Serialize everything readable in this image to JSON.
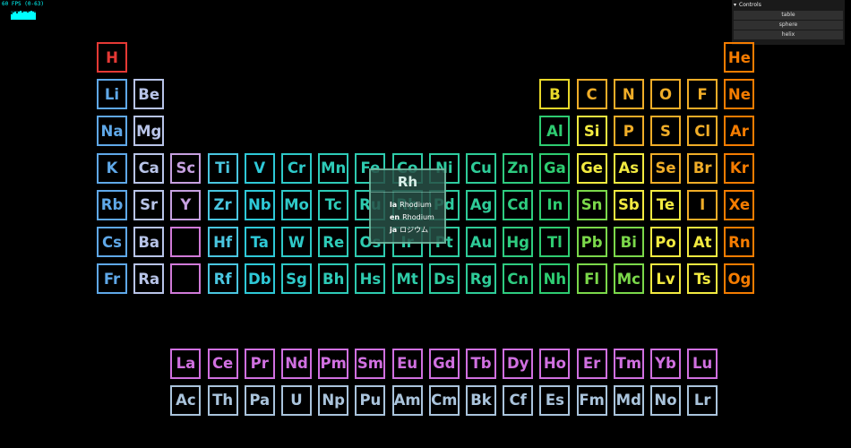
{
  "stats": {
    "fps_text": "60 FPS (0-63)",
    "bars": [
      0.6,
      0.8,
      0.9,
      0.7,
      0.9,
      1,
      0.8,
      0.9,
      0.9,
      0.8,
      0.9,
      1,
      0.9,
      0.8
    ]
  },
  "controls": {
    "title": "Controls",
    "buttons": [
      "table",
      "sphere",
      "helix"
    ]
  },
  "tooltip": {
    "symbol": "Rh",
    "names": [
      {
        "lang": "la",
        "name": "Rhodium"
      },
      {
        "lang": "en",
        "name": "Rhodium"
      },
      {
        "lang": "ja",
        "name": "ロジウム"
      }
    ]
  },
  "elements": [
    {
      "s": "H",
      "c": "#e53935",
      "r": 0,
      "col": 0
    },
    {
      "s": "He",
      "c": "#f57c00",
      "r": 0,
      "col": 17
    },
    {
      "s": "Li",
      "c": "#5fa8e8",
      "r": 1,
      "col": 0
    },
    {
      "s": "Be",
      "c": "#b8c4e8",
      "r": 1,
      "col": 1
    },
    {
      "s": "B",
      "c": "#e8d82a",
      "r": 1,
      "col": 12
    },
    {
      "s": "C",
      "c": "#f0ad28",
      "r": 1,
      "col": 13
    },
    {
      "s": "N",
      "c": "#f0ad28",
      "r": 1,
      "col": 14
    },
    {
      "s": "O",
      "c": "#f0ad28",
      "r": 1,
      "col": 15
    },
    {
      "s": "F",
      "c": "#f0ad28",
      "r": 1,
      "col": 16
    },
    {
      "s": "Ne",
      "c": "#f57c00",
      "r": 1,
      "col": 17
    },
    {
      "s": "Na",
      "c": "#5fa8e8",
      "r": 2,
      "col": 0
    },
    {
      "s": "Mg",
      "c": "#b8c4e8",
      "r": 2,
      "col": 1
    },
    {
      "s": "Al",
      "c": "#2ecc71",
      "r": 2,
      "col": 12
    },
    {
      "s": "Si",
      "c": "#f2ea40",
      "r": 2,
      "col": 13
    },
    {
      "s": "P",
      "c": "#f0ad28",
      "r": 2,
      "col": 14
    },
    {
      "s": "S",
      "c": "#f0ad28",
      "r": 2,
      "col": 15
    },
    {
      "s": "Cl",
      "c": "#f0ad28",
      "r": 2,
      "col": 16
    },
    {
      "s": "Ar",
      "c": "#f57c00",
      "r": 2,
      "col": 17
    },
    {
      "s": "K",
      "c": "#5fa8e8",
      "r": 3,
      "col": 0
    },
    {
      "s": "Ca",
      "c": "#b8c4e8",
      "r": 3,
      "col": 1
    },
    {
      "s": "Sc",
      "c": "#c6a0e0",
      "r": 3,
      "col": 2
    },
    {
      "s": "Ti",
      "c": "#4ac6e0",
      "r": 3,
      "col": 3
    },
    {
      "s": "V",
      "c": "#2ec9d8",
      "r": 3,
      "col": 4
    },
    {
      "s": "Cr",
      "c": "#2ec9c8",
      "r": 3,
      "col": 5
    },
    {
      "s": "Mn",
      "c": "#2ecbb8",
      "r": 3,
      "col": 6
    },
    {
      "s": "Fe",
      "c": "#2ecbb0",
      "r": 3,
      "col": 7
    },
    {
      "s": "Co",
      "c": "#2ecca8",
      "r": 3,
      "col": 8
    },
    {
      "s": "Ni",
      "c": "#2ecca0",
      "r": 3,
      "col": 9
    },
    {
      "s": "Cu",
      "c": "#2ecc98",
      "r": 3,
      "col": 10
    },
    {
      "s": "Zn",
      "c": "#2ecc80",
      "r": 3,
      "col": 11
    },
    {
      "s": "Ga",
      "c": "#2ecc71",
      "r": 3,
      "col": 12
    },
    {
      "s": "Ge",
      "c": "#f2ea40",
      "r": 3,
      "col": 13
    },
    {
      "s": "As",
      "c": "#f2ea40",
      "r": 3,
      "col": 14
    },
    {
      "s": "Se",
      "c": "#f0ad28",
      "r": 3,
      "col": 15
    },
    {
      "s": "Br",
      "c": "#f0ad28",
      "r": 3,
      "col": 16
    },
    {
      "s": "Kr",
      "c": "#f57c00",
      "r": 3,
      "col": 17
    },
    {
      "s": "Rb",
      "c": "#5fa8e8",
      "r": 4,
      "col": 0
    },
    {
      "s": "Sr",
      "c": "#b8c4e8",
      "r": 4,
      "col": 1
    },
    {
      "s": "Y",
      "c": "#c6a0e0",
      "r": 4,
      "col": 2
    },
    {
      "s": "Zr",
      "c": "#4ac6e0",
      "r": 4,
      "col": 3
    },
    {
      "s": "Nb",
      "c": "#2ec9d8",
      "r": 4,
      "col": 4
    },
    {
      "s": "Mo",
      "c": "#2ec9c8",
      "r": 4,
      "col": 5
    },
    {
      "s": "Tc",
      "c": "#2ecbb8",
      "r": 4,
      "col": 6
    },
    {
      "s": "Ru",
      "c": "#2ecbb0",
      "r": 4,
      "col": 7
    },
    {
      "s": "Rh",
      "c": "#2ecca8",
      "r": 4,
      "col": 8
    },
    {
      "s": "Pd",
      "c": "#2ecca0",
      "r": 4,
      "col": 9
    },
    {
      "s": "Ag",
      "c": "#2ecc98",
      "r": 4,
      "col": 10
    },
    {
      "s": "Cd",
      "c": "#2ecc80",
      "r": 4,
      "col": 11
    },
    {
      "s": "In",
      "c": "#2ecc71",
      "r": 4,
      "col": 12
    },
    {
      "s": "Sn",
      "c": "#7bd84a",
      "r": 4,
      "col": 13
    },
    {
      "s": "Sb",
      "c": "#f2ea40",
      "r": 4,
      "col": 14
    },
    {
      "s": "Te",
      "c": "#f2ea40",
      "r": 4,
      "col": 15
    },
    {
      "s": "I",
      "c": "#f0ad28",
      "r": 4,
      "col": 16
    },
    {
      "s": "Xe",
      "c": "#f57c00",
      "r": 4,
      "col": 17
    },
    {
      "s": "Cs",
      "c": "#5fa8e8",
      "r": 5,
      "col": 0
    },
    {
      "s": "Ba",
      "c": "#b8c4e8",
      "r": 5,
      "col": 1
    },
    {
      "s": "Hf",
      "c": "#4ac6e0",
      "r": 5,
      "col": 3
    },
    {
      "s": "Ta",
      "c": "#2ec9d8",
      "r": 5,
      "col": 4
    },
    {
      "s": "W",
      "c": "#2ec9c8",
      "r": 5,
      "col": 5
    },
    {
      "s": "Re",
      "c": "#2ecbb8",
      "r": 5,
      "col": 6
    },
    {
      "s": "Os",
      "c": "#2ecbb0",
      "r": 5,
      "col": 7
    },
    {
      "s": "Ir",
      "c": "#2ecca8",
      "r": 5,
      "col": 8
    },
    {
      "s": "Pt",
      "c": "#2ecca0",
      "r": 5,
      "col": 9
    },
    {
      "s": "Au",
      "c": "#2ecc98",
      "r": 5,
      "col": 10
    },
    {
      "s": "Hg",
      "c": "#2ecc80",
      "r": 5,
      "col": 11
    },
    {
      "s": "Tl",
      "c": "#2ecc71",
      "r": 5,
      "col": 12
    },
    {
      "s": "Pb",
      "c": "#7bd84a",
      "r": 5,
      "col": 13
    },
    {
      "s": "Bi",
      "c": "#7bd84a",
      "r": 5,
      "col": 14
    },
    {
      "s": "Po",
      "c": "#f2ea40",
      "r": 5,
      "col": 15
    },
    {
      "s": "At",
      "c": "#f2ea40",
      "r": 5,
      "col": 16
    },
    {
      "s": "Rn",
      "c": "#f57c00",
      "r": 5,
      "col": 17
    },
    {
      "s": "Fr",
      "c": "#5fa8e8",
      "r": 6,
      "col": 0
    },
    {
      "s": "Ra",
      "c": "#b8c4e8",
      "r": 6,
      "col": 1
    },
    {
      "s": "Rf",
      "c": "#4ac6e0",
      "r": 6,
      "col": 3
    },
    {
      "s": "Db",
      "c": "#2ec9d8",
      "r": 6,
      "col": 4
    },
    {
      "s": "Sg",
      "c": "#2ec9c8",
      "r": 6,
      "col": 5
    },
    {
      "s": "Bh",
      "c": "#2ecbb8",
      "r": 6,
      "col": 6
    },
    {
      "s": "Hs",
      "c": "#2ecbb0",
      "r": 6,
      "col": 7
    },
    {
      "s": "Mt",
      "c": "#2ecca8",
      "r": 6,
      "col": 8
    },
    {
      "s": "Ds",
      "c": "#2ecca0",
      "r": 6,
      "col": 9
    },
    {
      "s": "Rg",
      "c": "#2ecc98",
      "r": 6,
      "col": 10
    },
    {
      "s": "Cn",
      "c": "#2ecc80",
      "r": 6,
      "col": 11
    },
    {
      "s": "Nh",
      "c": "#2ecc71",
      "r": 6,
      "col": 12
    },
    {
      "s": "Fl",
      "c": "#7bd84a",
      "r": 6,
      "col": 13
    },
    {
      "s": "Mc",
      "c": "#7bd84a",
      "r": 6,
      "col": 14
    },
    {
      "s": "Lv",
      "c": "#f2ea40",
      "r": 6,
      "col": 15
    },
    {
      "s": "Ts",
      "c": "#f2ea40",
      "r": 6,
      "col": 16
    },
    {
      "s": "Og",
      "c": "#f57c00",
      "r": 6,
      "col": 17
    },
    {
      "s": "La",
      "c": "#d070e0",
      "r": 8,
      "col": 2
    },
    {
      "s": "Ce",
      "c": "#d070e0",
      "r": 8,
      "col": 3
    },
    {
      "s": "Pr",
      "c": "#d070e0",
      "r": 8,
      "col": 4
    },
    {
      "s": "Nd",
      "c": "#d070e0",
      "r": 8,
      "col": 5
    },
    {
      "s": "Pm",
      "c": "#d070e0",
      "r": 8,
      "col": 6
    },
    {
      "s": "Sm",
      "c": "#d070e0",
      "r": 8,
      "col": 7
    },
    {
      "s": "Eu",
      "c": "#d070e0",
      "r": 8,
      "col": 8
    },
    {
      "s": "Gd",
      "c": "#d070e0",
      "r": 8,
      "col": 9
    },
    {
      "s": "Tb",
      "c": "#d070e0",
      "r": 8,
      "col": 10
    },
    {
      "s": "Dy",
      "c": "#d070e0",
      "r": 8,
      "col": 11
    },
    {
      "s": "Ho",
      "c": "#d070e0",
      "r": 8,
      "col": 12
    },
    {
      "s": "Er",
      "c": "#d070e0",
      "r": 8,
      "col": 13
    },
    {
      "s": "Tm",
      "c": "#d070e0",
      "r": 8,
      "col": 14
    },
    {
      "s": "Yb",
      "c": "#d070e0",
      "r": 8,
      "col": 15
    },
    {
      "s": "Lu",
      "c": "#d070e0",
      "r": 8,
      "col": 16
    },
    {
      "s": "Ac",
      "c": "#aac4dc",
      "r": 9,
      "col": 2
    },
    {
      "s": "Th",
      "c": "#aac4dc",
      "r": 9,
      "col": 3
    },
    {
      "s": "Pa",
      "c": "#aac4dc",
      "r": 9,
      "col": 4
    },
    {
      "s": "U",
      "c": "#aac4dc",
      "r": 9,
      "col": 5
    },
    {
      "s": "Np",
      "c": "#aac4dc",
      "r": 9,
      "col": 6
    },
    {
      "s": "Pu",
      "c": "#aac4dc",
      "r": 9,
      "col": 7
    },
    {
      "s": "Am",
      "c": "#aac4dc",
      "r": 9,
      "col": 8
    },
    {
      "s": "Cm",
      "c": "#aac4dc",
      "r": 9,
      "col": 9
    },
    {
      "s": "Bk",
      "c": "#aac4dc",
      "r": 9,
      "col": 10
    },
    {
      "s": "Cf",
      "c": "#aac4dc",
      "r": 9,
      "col": 11
    },
    {
      "s": "Es",
      "c": "#aac4dc",
      "r": 9,
      "col": 12
    },
    {
      "s": "Fm",
      "c": "#aac4dc",
      "r": 9,
      "col": 13
    },
    {
      "s": "Md",
      "c": "#aac4dc",
      "r": 9,
      "col": 14
    },
    {
      "s": "No",
      "c": "#aac4dc",
      "r": 9,
      "col": 15
    },
    {
      "s": "Lr",
      "c": "#aac4dc",
      "r": 9,
      "col": 16
    }
  ],
  "placeholders": [
    {
      "r": 5,
      "col": 2
    },
    {
      "r": 6,
      "col": 2
    }
  ]
}
